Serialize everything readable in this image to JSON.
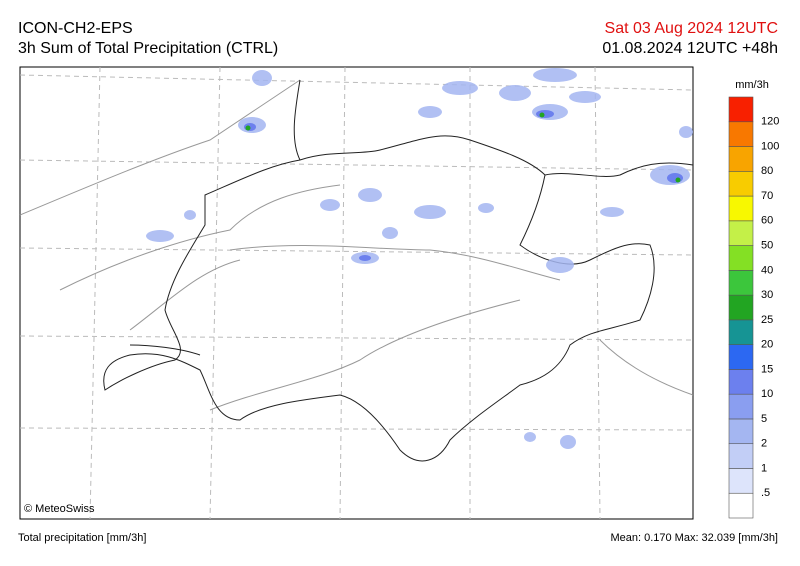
{
  "header": {
    "model": "ICON-CH2-EPS",
    "product": "3h Sum of Total Precipitation (CTRL)",
    "valid_time": "Sat 03 Aug 2024 12UTC",
    "run_time": "01.08.2024 12UTC +48h"
  },
  "legend": {
    "unit": "mm/3h",
    "labels": [
      ".5",
      "1",
      "2",
      "5",
      "10",
      "15",
      "20",
      "25",
      "30",
      "40",
      "50",
      "60",
      "70",
      "80",
      "100",
      "120"
    ],
    "colors": [
      "#ffffff",
      "#dde4fb",
      "#c2cef6",
      "#a4b6f1",
      "#8a9ef0",
      "#6c80ee",
      "#2c68f2",
      "#169494",
      "#22a522",
      "#3cc63c",
      "#84e024",
      "#c4f048",
      "#f8f800",
      "#f8cc00",
      "#f8a400",
      "#f87800",
      "#f82000"
    ]
  },
  "map": {
    "credit": "© MeteoSwiss"
  },
  "footer": {
    "variable": "Total precipitation [mm/3h]",
    "stats": "Mean:  0.170 Max: 32.039 [mm/3h]"
  }
}
